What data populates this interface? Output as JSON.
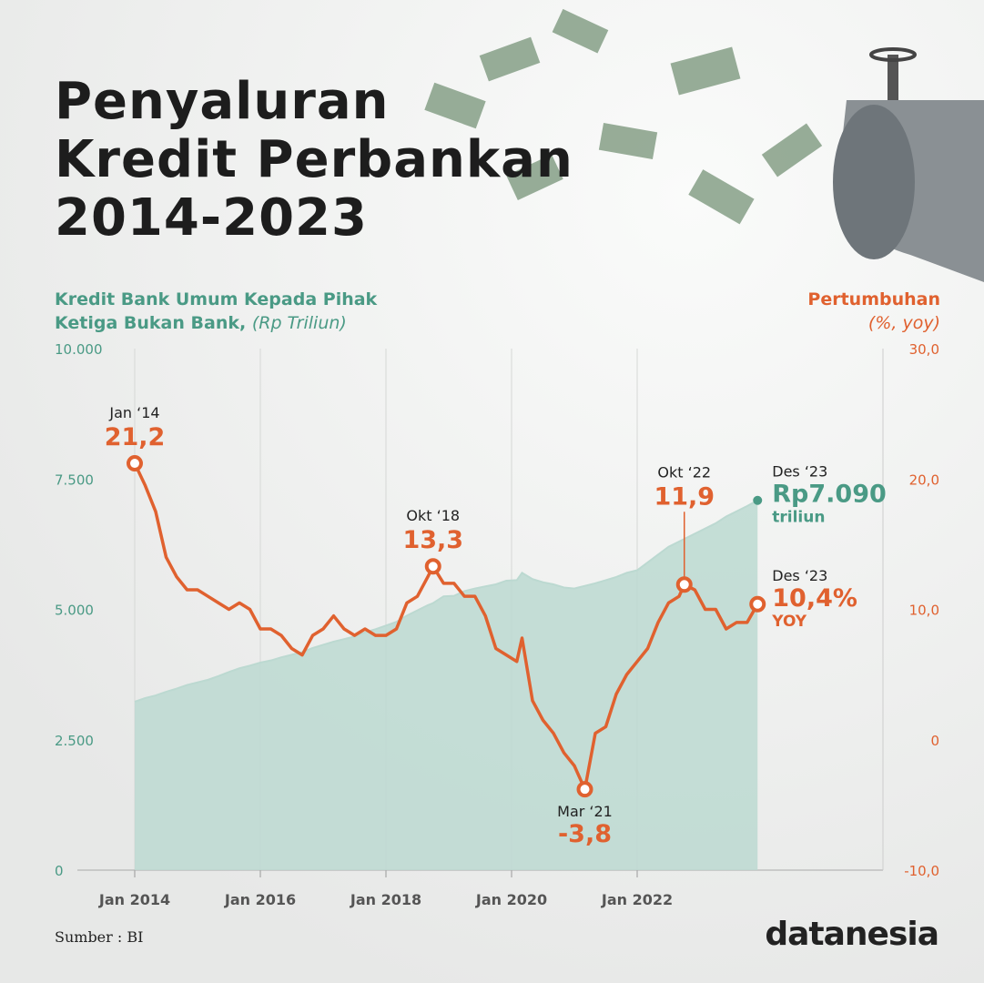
{
  "chart_data": {
    "type": "area-line",
    "title": [
      "Penyaluran",
      "Kredit Perbankan",
      "2014-2023"
    ],
    "y_label": "Kredit Bank Umum Kepada Pihak Ketiga Bukan Bank,",
    "y_label_unit": "(Rp Triliun)",
    "y2_label": "Pertumbuhan",
    "y2_label_unit": "(%, yoy)",
    "source": "Sumber : BI",
    "brand": "datanesia",
    "x": [
      "2014-01",
      "2014-03",
      "2014-05",
      "2014-07",
      "2014-09",
      "2014-11",
      "2015-01",
      "2015-03",
      "2015-05",
      "2015-07",
      "2015-09",
      "2015-11",
      "2016-01",
      "2016-03",
      "2016-05",
      "2016-07",
      "2016-09",
      "2016-11",
      "2017-01",
      "2017-03",
      "2017-05",
      "2017-07",
      "2017-09",
      "2017-11",
      "2018-01",
      "2018-03",
      "2018-05",
      "2018-07",
      "2018-09",
      "2018-10",
      "2018-12",
      "2019-02",
      "2019-04",
      "2019-06",
      "2019-08",
      "2019-10",
      "2019-12",
      "2020-02",
      "2020-03",
      "2020-05",
      "2020-07",
      "2020-09",
      "2020-11",
      "2021-01",
      "2021-03",
      "2021-05",
      "2021-07",
      "2021-09",
      "2021-11",
      "2022-01",
      "2022-03",
      "2022-05",
      "2022-07",
      "2022-09",
      "2022-10",
      "2022-12",
      "2023-02",
      "2023-04",
      "2023-06",
      "2023-08",
      "2023-10",
      "2023-12"
    ],
    "series": [
      {
        "name": "Kredit",
        "color": "#4a9a85",
        "fill": "#bcd9d1",
        "values": [
          3230,
          3300,
          3350,
          3420,
          3480,
          3550,
          3600,
          3650,
          3720,
          3800,
          3870,
          3920,
          3980,
          4020,
          4080,
          4130,
          4180,
          4260,
          4320,
          4380,
          4430,
          4480,
          4560,
          4620,
          4690,
          4760,
          4880,
          4980,
          5080,
          5120,
          5250,
          5260,
          5350,
          5400,
          5440,
          5480,
          5550,
          5560,
          5700,
          5580,
          5520,
          5480,
          5420,
          5400,
          5450,
          5500,
          5560,
          5620,
          5700,
          5750,
          5900,
          6050,
          6200,
          6300,
          6350,
          6450,
          6550,
          6650,
          6780,
          6880,
          6980,
          7090
        ],
        "value_labels": [
          null,
          null,
          null,
          null,
          null,
          null,
          null,
          null,
          null,
          null,
          null,
          null,
          null,
          null,
          null,
          null,
          null,
          null,
          null,
          null,
          null,
          null,
          null,
          null,
          null,
          null,
          null,
          null,
          null,
          null,
          null,
          null,
          null,
          null,
          null,
          null,
          null,
          null,
          null,
          null,
          null,
          null,
          null,
          null,
          null,
          null,
          null,
          null,
          null,
          null,
          null,
          null,
          null,
          null,
          null,
          null,
          null,
          null,
          null,
          null,
          null,
          "Rp7.090"
        ],
        "point_labels": [
          null,
          null,
          null,
          null,
          null,
          null,
          null,
          null,
          null,
          null,
          null,
          null,
          null,
          null,
          null,
          null,
          null,
          null,
          null,
          null,
          null,
          null,
          null,
          null,
          null,
          null,
          null,
          null,
          null,
          null,
          null,
          null,
          null,
          null,
          null,
          null,
          null,
          null,
          null,
          null,
          null,
          null,
          null,
          null,
          null,
          null,
          null,
          null,
          null,
          null,
          null,
          null,
          null,
          null,
          null,
          null,
          null,
          null,
          null,
          null,
          null,
          "Des ‘23"
        ],
        "end_note": "triliun"
      },
      {
        "name": "Pertumbuhan",
        "color": "#e0612f",
        "axis": "y2",
        "values": [
          21.2,
          19.5,
          17.5,
          14,
          12.5,
          11.5,
          11.5,
          11,
          10.5,
          10,
          10.5,
          10,
          8.5,
          8.5,
          8,
          7,
          6.5,
          8,
          8.5,
          9.5,
          8.5,
          8,
          8.5,
          8,
          8,
          8.5,
          10.5,
          11,
          12.5,
          13.3,
          12,
          12,
          11,
          11,
          9.5,
          7,
          6.5,
          6,
          7.8,
          3,
          1.5,
          0.5,
          -1,
          -2,
          -3.8,
          0.5,
          1,
          3.5,
          5,
          6,
          7,
          9,
          10.5,
          11,
          11.9,
          11.5,
          10,
          10,
          8.5,
          9,
          9,
          10.4
        ],
        "value_labels": [
          "21,2",
          null,
          null,
          null,
          null,
          null,
          null,
          null,
          null,
          null,
          null,
          null,
          null,
          null,
          null,
          null,
          null,
          null,
          null,
          null,
          null,
          null,
          null,
          null,
          null,
          null,
          null,
          null,
          null,
          "13,3",
          null,
          null,
          null,
          null,
          null,
          null,
          null,
          null,
          null,
          null,
          null,
          null,
          null,
          null,
          "-3,8",
          null,
          null,
          null,
          null,
          null,
          null,
          null,
          null,
          null,
          "11,9",
          null,
          null,
          null,
          null,
          null,
          null,
          "10,4%"
        ],
        "point_labels": [
          "Jan ‘14",
          null,
          null,
          null,
          null,
          null,
          null,
          null,
          null,
          null,
          null,
          null,
          null,
          null,
          null,
          null,
          null,
          null,
          null,
          null,
          null,
          null,
          null,
          null,
          null,
          null,
          null,
          null,
          null,
          "Okt ‘18",
          null,
          null,
          null,
          null,
          null,
          null,
          null,
          null,
          null,
          null,
          null,
          null,
          null,
          null,
          "Mar ‘21",
          null,
          null,
          null,
          null,
          null,
          null,
          null,
          null,
          null,
          "Okt ‘22",
          null,
          null,
          null,
          null,
          null,
          null,
          "Des ‘23"
        ],
        "end_note": "YOY"
      }
    ],
    "xticks": [
      {
        "value": "2014-01",
        "label": "Jan 2014"
      },
      {
        "value": "2016-01",
        "label": "Jan 2016"
      },
      {
        "value": "2018-01",
        "label": "Jan 2018"
      },
      {
        "value": "2020-01",
        "label": "Jan 2020"
      },
      {
        "value": "2022-01",
        "label": "Jan 2022"
      }
    ],
    "ylim": [
      0,
      10000
    ],
    "yticks": [
      0,
      {
        "value": 2500,
        "label": "2.500"
      },
      {
        "value": 5000,
        "label": "5.000"
      },
      {
        "value": 7500,
        "label": "7.500"
      },
      {
        "value": 10000,
        "label": "10.000"
      }
    ],
    "y2lim": [
      -10,
      30
    ],
    "y2ticks": [
      {
        "value": -10,
        "label": "-10,0"
      },
      0,
      {
        "value": 10,
        "label": "10,0"
      },
      {
        "value": 20,
        "label": "20,0"
      },
      {
        "value": 30,
        "label": "30,0"
      }
    ],
    "grid": true
  }
}
